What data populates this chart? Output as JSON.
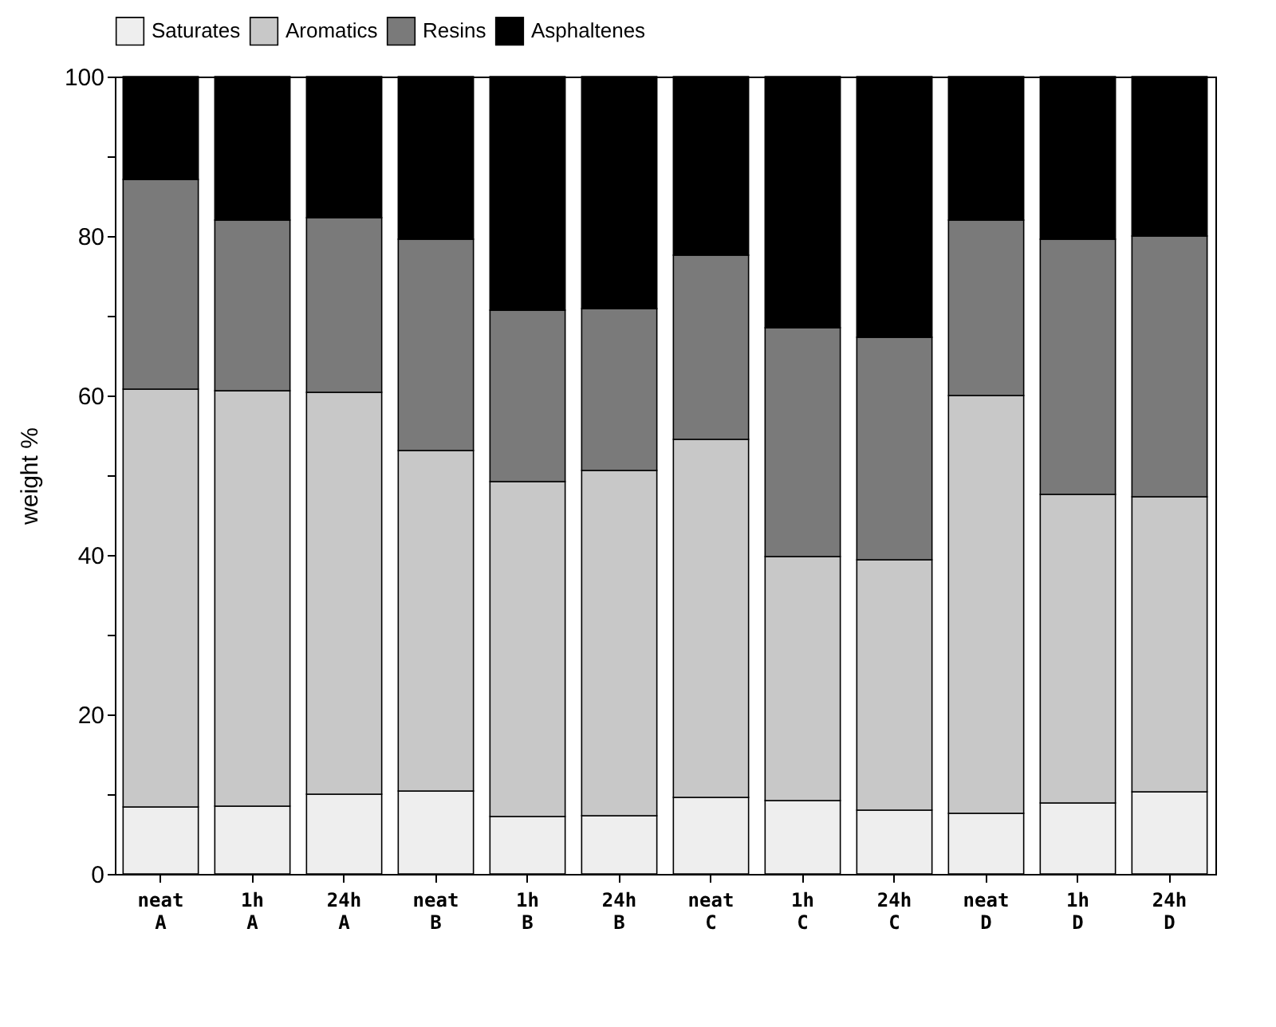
{
  "chart_data": {
    "type": "bar",
    "stacked": true,
    "ylabel": "weight %",
    "ylim": [
      0,
      100
    ],
    "yticks": [
      0,
      {
        "value": 10,
        "label": null
      },
      20,
      {
        "value": 30,
        "label": null
      },
      40,
      {
        "value": 50,
        "label": null
      },
      60,
      {
        "value": 70,
        "label": null
      },
      80,
      {
        "value": 90,
        "label": null
      },
      100
    ],
    "categories": [
      "neat A",
      "1h A",
      "24h A",
      "neat B",
      "1h B",
      "24h B",
      "neat C",
      "1h C",
      "24h C",
      "neat D",
      "1h D",
      "24h D"
    ],
    "legend": "top",
    "grid": false,
    "series": [
      {
        "name": "Saturates",
        "color": "#eeeeee",
        "values": [
          8.4,
          8.5,
          10,
          10.4,
          7.2,
          7.3,
          9.6,
          9.2,
          8,
          7.6,
          8.9,
          10.3
        ]
      },
      {
        "name": "Aromatics",
        "color": "#c8c8c8",
        "values": [
          52.4,
          52.1,
          50.4,
          42.7,
          42,
          43.3,
          44.9,
          30.6,
          31.4,
          52.4,
          38.7,
          37
        ]
      },
      {
        "name": "Resins",
        "color": "#7a7a7a",
        "values": [
          26.3,
          21.4,
          21.9,
          26.5,
          21.5,
          20.3,
          23.1,
          28.7,
          27.9,
          22,
          32,
          32.7
        ]
      },
      {
        "name": "Asphaltenes",
        "color": "#000000",
        "values": [
          12.9,
          18,
          17.7,
          20.4,
          29.3,
          29.1,
          22.4,
          31.5,
          32.7,
          18,
          20.4,
          20
        ]
      }
    ]
  }
}
